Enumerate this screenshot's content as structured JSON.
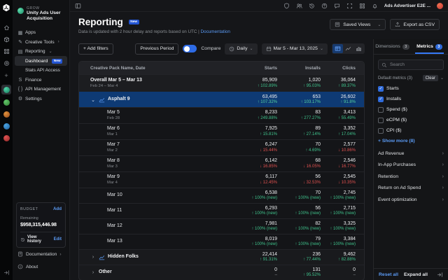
{
  "topbar": {
    "icons": [
      "shield",
      "users",
      "history",
      "help",
      "feedback",
      "fullscreen",
      "apps-grid",
      "notifications"
    ],
    "account_label": "Ads Advertiser E2E ..."
  },
  "rail": {
    "nav_icons": [
      "home",
      "projects",
      "grid",
      "operate"
    ],
    "apps": [
      {
        "name": "app-selected",
        "color1": "#4fd6a8",
        "color2": "#17795c",
        "selected": true
      },
      {
        "name": "app-2",
        "color1": "#63c66a",
        "color2": "#2e7d32",
        "selected": false
      },
      {
        "name": "app-3",
        "color1": "#e0913c",
        "color2": "#94491c",
        "selected": false
      },
      {
        "name": "app-4",
        "color1": "#4aa3e0",
        "color2": "#1f5f9c",
        "selected": false
      },
      {
        "name": "app-5",
        "color1": "#e05252",
        "color2": "#8f2626",
        "selected": false
      }
    ]
  },
  "sidebar": {
    "org_kicker": "GROW",
    "org_name": "Unity Ads User Acquisition",
    "items": [
      {
        "label": "Apps",
        "icon": "apps"
      },
      {
        "label": "Creative Tools",
        "icon": "creative",
        "chevron": "›"
      },
      {
        "label": "Reporting",
        "icon": "reporting",
        "chevron": "⌄"
      },
      {
        "label": "Dashboard",
        "badge": "New",
        "selected": true,
        "indent": true
      },
      {
        "label": "Stats API Access",
        "indent": true
      },
      {
        "label": "Finance",
        "icon": "finance"
      },
      {
        "label": "API Management",
        "icon": "api"
      },
      {
        "label": "Settings",
        "icon": "settings"
      }
    ],
    "budget": {
      "title": "BUDGET",
      "add": "Add",
      "remaining_label": "Remaining",
      "remaining_value": "$958,315,446.98",
      "view_history": "View history",
      "edit": "Edit"
    },
    "footer": [
      {
        "label": "Documentation",
        "icon": "doc",
        "chevron": "›"
      },
      {
        "label": "About",
        "icon": "info"
      }
    ]
  },
  "header": {
    "title": "Reporting",
    "badge": "New",
    "subtitle": "Data is updated with 2 hour delay and reports based on UTC",
    "divider": "|",
    "doc_link": "Documentation",
    "saved_views": "Saved Views",
    "export_csv": "Export as CSV"
  },
  "toolbar": {
    "add_filters": "+ Add filters",
    "previous_period": "Previous Period",
    "compare_label": "Compare",
    "compare_on": true,
    "granularity": "Daily",
    "date_range": "Mar 5 - Mar 13, 2025",
    "active_view": "table"
  },
  "table": {
    "columns": [
      "Creative Pack Name, Date",
      "Starts",
      "Installs",
      "Clicks"
    ],
    "rows": [
      {
        "name": "Overall Mar 5 – Mar 13",
        "sub": "Feb 24 – Mar 4",
        "type": "overall",
        "starts": {
          "value": "85,909",
          "delta": "102.89%",
          "dir": "up"
        },
        "installs": {
          "value": "1,020",
          "delta": "95.03%",
          "dir": "up"
        },
        "clicks": {
          "value": "36,064",
          "delta": "89.37%",
          "dir": "up"
        }
      },
      {
        "name": "Asphalt 9",
        "type": "group",
        "expanded": true,
        "selected": true,
        "chart_icon": true,
        "starts": {
          "value": "63,495",
          "delta": "107.32%",
          "dir": "up"
        },
        "installs": {
          "value": "653",
          "delta": "103.17%",
          "dir": "up"
        },
        "clicks": {
          "value": "26,602",
          "delta": "91.8%",
          "dir": "up"
        }
      },
      {
        "name": "Mar 5",
        "sub": "Feb 28",
        "type": "day",
        "starts": {
          "value": "8,233",
          "delta": "249.88%",
          "dir": "up"
        },
        "installs": {
          "value": "83",
          "delta": "277.27%",
          "dir": "up"
        },
        "clicks": {
          "value": "3,413",
          "delta": "55.49%",
          "dir": "up"
        }
      },
      {
        "name": "Mar 6",
        "sub": "Mar 1",
        "type": "day",
        "starts": {
          "value": "7,925",
          "delta": "15.81%",
          "dir": "up"
        },
        "installs": {
          "value": "89",
          "delta": "27.14%",
          "dir": "up"
        },
        "clicks": {
          "value": "3,352",
          "delta": "17.04%",
          "dir": "up"
        }
      },
      {
        "name": "Mar 7",
        "sub": "Mar 2",
        "type": "day",
        "starts": {
          "value": "6,247",
          "delta": "15.44%",
          "dir": "down"
        },
        "installs": {
          "value": "70",
          "delta": "4.69%",
          "dir": "up"
        },
        "clicks": {
          "value": "2,577",
          "delta": "10.86%",
          "dir": "down"
        }
      },
      {
        "name": "Mar 8",
        "sub": "Mar 3",
        "type": "day",
        "starts": {
          "value": "6,142",
          "delta": "16.85%",
          "dir": "down"
        },
        "installs": {
          "value": "68",
          "delta": "16.05%",
          "dir": "down"
        },
        "clicks": {
          "value": "2,546",
          "delta": "16.77%",
          "dir": "down"
        }
      },
      {
        "name": "Mar 9",
        "sub": "Mar 4",
        "type": "day",
        "starts": {
          "value": "6,117",
          "delta": "12.45%",
          "dir": "down"
        },
        "installs": {
          "value": "56",
          "delta": "32.53%",
          "dir": "down"
        },
        "clicks": {
          "value": "2,545",
          "delta": "10.35%",
          "dir": "down"
        }
      },
      {
        "name": "Mar 10",
        "type": "day",
        "starts": {
          "value": "6,538",
          "delta": "100% (new)",
          "dir": "up"
        },
        "installs": {
          "value": "70",
          "delta": "100% (new)",
          "dir": "up"
        },
        "clicks": {
          "value": "2,745",
          "delta": "100% (new)",
          "dir": "up"
        }
      },
      {
        "name": "Mar 11",
        "type": "day",
        "starts": {
          "value": "6,293",
          "delta": "100% (new)",
          "dir": "up"
        },
        "installs": {
          "value": "56",
          "delta": "100% (new)",
          "dir": "up"
        },
        "clicks": {
          "value": "2,715",
          "delta": "100% (new)",
          "dir": "up"
        }
      },
      {
        "name": "Mar 12",
        "type": "day",
        "starts": {
          "value": "7,981",
          "delta": "100% (new)",
          "dir": "up"
        },
        "installs": {
          "value": "82",
          "delta": "100% (new)",
          "dir": "up"
        },
        "clicks": {
          "value": "3,325",
          "delta": "100% (new)",
          "dir": "up"
        }
      },
      {
        "name": "Mar 13",
        "type": "day",
        "starts": {
          "value": "8,019",
          "delta": "100% (new)",
          "dir": "up"
        },
        "installs": {
          "value": "79",
          "delta": "100% (new)",
          "dir": "up"
        },
        "clicks": {
          "value": "3,384",
          "delta": "100% (new)",
          "dir": "up"
        }
      },
      {
        "name": "Hidden Folks",
        "type": "group",
        "expanded": false,
        "chart_icon": true,
        "starts": {
          "value": "22,414",
          "delta": "91.31%",
          "dir": "up"
        },
        "installs": {
          "value": "236",
          "delta": "77.44%",
          "dir": "up"
        },
        "clicks": {
          "value": "9,462",
          "delta": "82.88%",
          "dir": "up"
        }
      },
      {
        "name": "Other",
        "type": "group",
        "expanded": false,
        "chart_icon": false,
        "starts": {
          "value": "0",
          "delta": "",
          "dir": "none"
        },
        "installs": {
          "value": "131",
          "delta": "95.52%",
          "dir": "up"
        },
        "clicks": {
          "value": "0",
          "delta": "",
          "dir": "none"
        }
      }
    ]
  },
  "right_panel": {
    "tabs": [
      {
        "label": "Dimensions",
        "count": "3",
        "active": false
      },
      {
        "label": "Metrics",
        "count": "3",
        "active": true
      }
    ],
    "search_placeholder": "Search",
    "default_metrics_label": "Default metrics (3)",
    "clear_label": "Clear",
    "metrics": [
      {
        "label": "Starts",
        "checked": true
      },
      {
        "label": "Installs",
        "checked": true
      },
      {
        "label": "Spend ($)",
        "checked": false
      },
      {
        "label": "eCPM ($)",
        "checked": false
      },
      {
        "label": "CPI ($)",
        "checked": false
      }
    ],
    "show_more": "+ Show more (8)",
    "sections": [
      "Ad Revenue",
      "In-App Purchases",
      "Retention",
      "Return on Ad Spend",
      "Event optimization"
    ],
    "footer": {
      "reset": "Reset all",
      "expand": "Expand all"
    }
  },
  "colors": {
    "accent": "#3573f0",
    "positive": "#3fc38c",
    "negative": "#e0514f",
    "selected_row": "#0e3a74"
  }
}
